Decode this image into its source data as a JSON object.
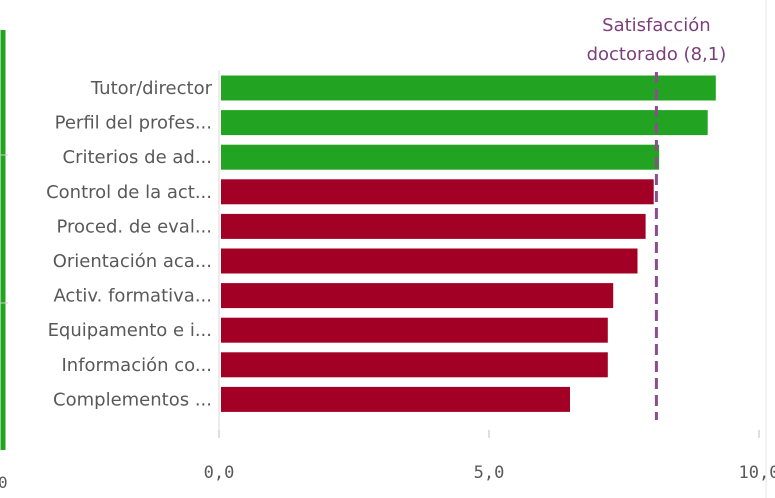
{
  "chart_data": {
    "type": "bar",
    "orientation": "horizontal",
    "title": "",
    "xlabel": "",
    "ylabel": "",
    "categories": [
      "Tutor/director",
      "Perfil del profes...",
      "Criterios de ad...",
      "Control de la act...",
      "Proced. de eval...",
      "Orientación aca...",
      "Activ. formativa...",
      "Equipamento e i...",
      "Información co...",
      "Complementos ..."
    ],
    "values": [
      9.2,
      9.05,
      8.15,
      8.05,
      7.9,
      7.75,
      7.3,
      7.2,
      7.2,
      6.5
    ],
    "xlim": [
      0,
      10
    ],
    "xticks": [
      "0,0",
      "5,0",
      "10,0"
    ],
    "grid": false,
    "reference_line": {
      "value": 8.1,
      "label_line1": "Satisfacción",
      "label_line2": "doctorado (8,1)",
      "color": "#8b4d8b"
    },
    "colors": {
      "above": "#22a322",
      "below": "#a30025"
    },
    "bar_colors": [
      "above",
      "above",
      "above",
      "below",
      "below",
      "below",
      "below",
      "below",
      "below",
      "below"
    ]
  },
  "edge": {
    "tick_label": "0"
  }
}
